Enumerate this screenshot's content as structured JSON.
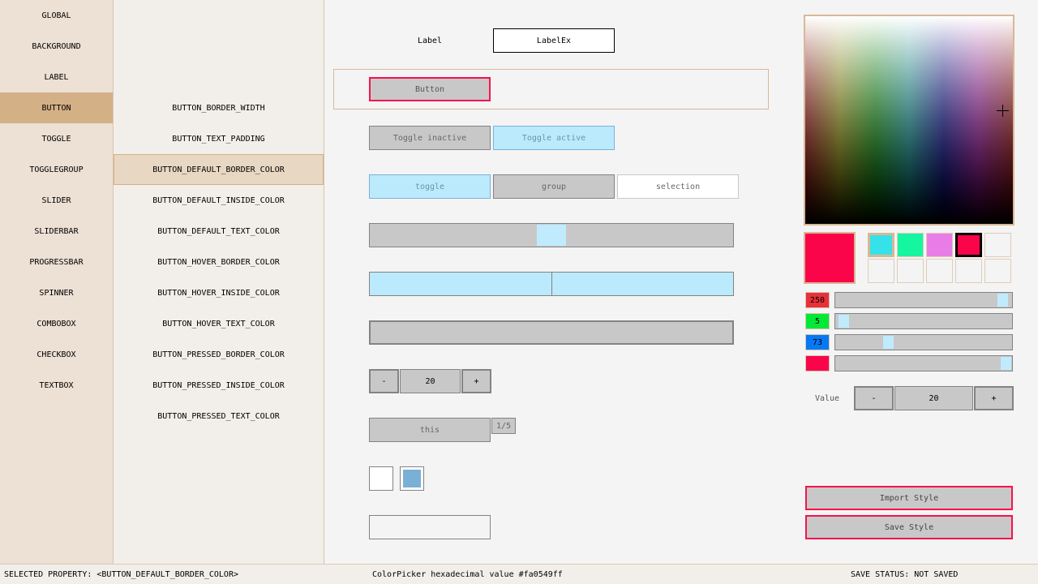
{
  "sidebar": {
    "items": [
      "GLOBAL",
      "BACKGROUND",
      "LABEL",
      "BUTTON",
      "TOGGLE",
      "TOGGLEGROUP",
      "SLIDER",
      "SLIDERBAR",
      "PROGRESSBAR",
      "SPINNER",
      "COMBOBOX",
      "CHECKBOX",
      "TEXTBOX"
    ],
    "selected": "BUTTON"
  },
  "properties": {
    "items": [
      "BUTTON_BORDER_WIDTH",
      "BUTTON_TEXT_PADDING",
      "BUTTON_DEFAULT_BORDER_COLOR",
      "BUTTON_DEFAULT_INSIDE_COLOR",
      "BUTTON_DEFAULT_TEXT_COLOR",
      "BUTTON_HOVER_BORDER_COLOR",
      "BUTTON_HOVER_INSIDE_COLOR",
      "BUTTON_HOVER_TEXT_COLOR",
      "BUTTON_PRESSED_BORDER_COLOR",
      "BUTTON_PRESSED_INSIDE_COLOR",
      "BUTTON_PRESSED_TEXT_COLOR"
    ],
    "selected": "BUTTON_DEFAULT_BORDER_COLOR"
  },
  "preview": {
    "label": "Label",
    "labelex": "LabelEx",
    "button": "Button",
    "toggle_inactive": "Toggle inactive",
    "toggle_active": "Toggle active",
    "group": [
      "toggle",
      "group",
      "selection"
    ],
    "slider_value": 0.5,
    "sliderbar_value": 0.5,
    "progress_value": 0,
    "spinner_minus": "-",
    "spinner_value": "20",
    "spinner_plus": "+",
    "combobox": "this",
    "combobox_count": "1/5",
    "checkbox_checked": [
      false,
      true
    ],
    "textbox": ""
  },
  "picker": {
    "selected_color": "#fa0549",
    "swatches": [
      "#35e2ea",
      "#16f59f",
      "#e87de8",
      "#fa0549",
      "",
      "",
      "",
      "",
      "",
      ""
    ],
    "r": "250",
    "g": "5",
    "b": "73",
    "alpha": 1,
    "value_label": "Value",
    "value_minus": "-",
    "value": "20",
    "value_plus": "+",
    "import": "Import Style",
    "save": "Save Style"
  },
  "status": {
    "selected": "SELECTED PROPERTY: <BUTTON_DEFAULT_BORDER_COLOR>",
    "hex": "ColorPicker hexadecimal value #fa0549ff",
    "save": "SAVE STATUS: NOT SAVED"
  }
}
